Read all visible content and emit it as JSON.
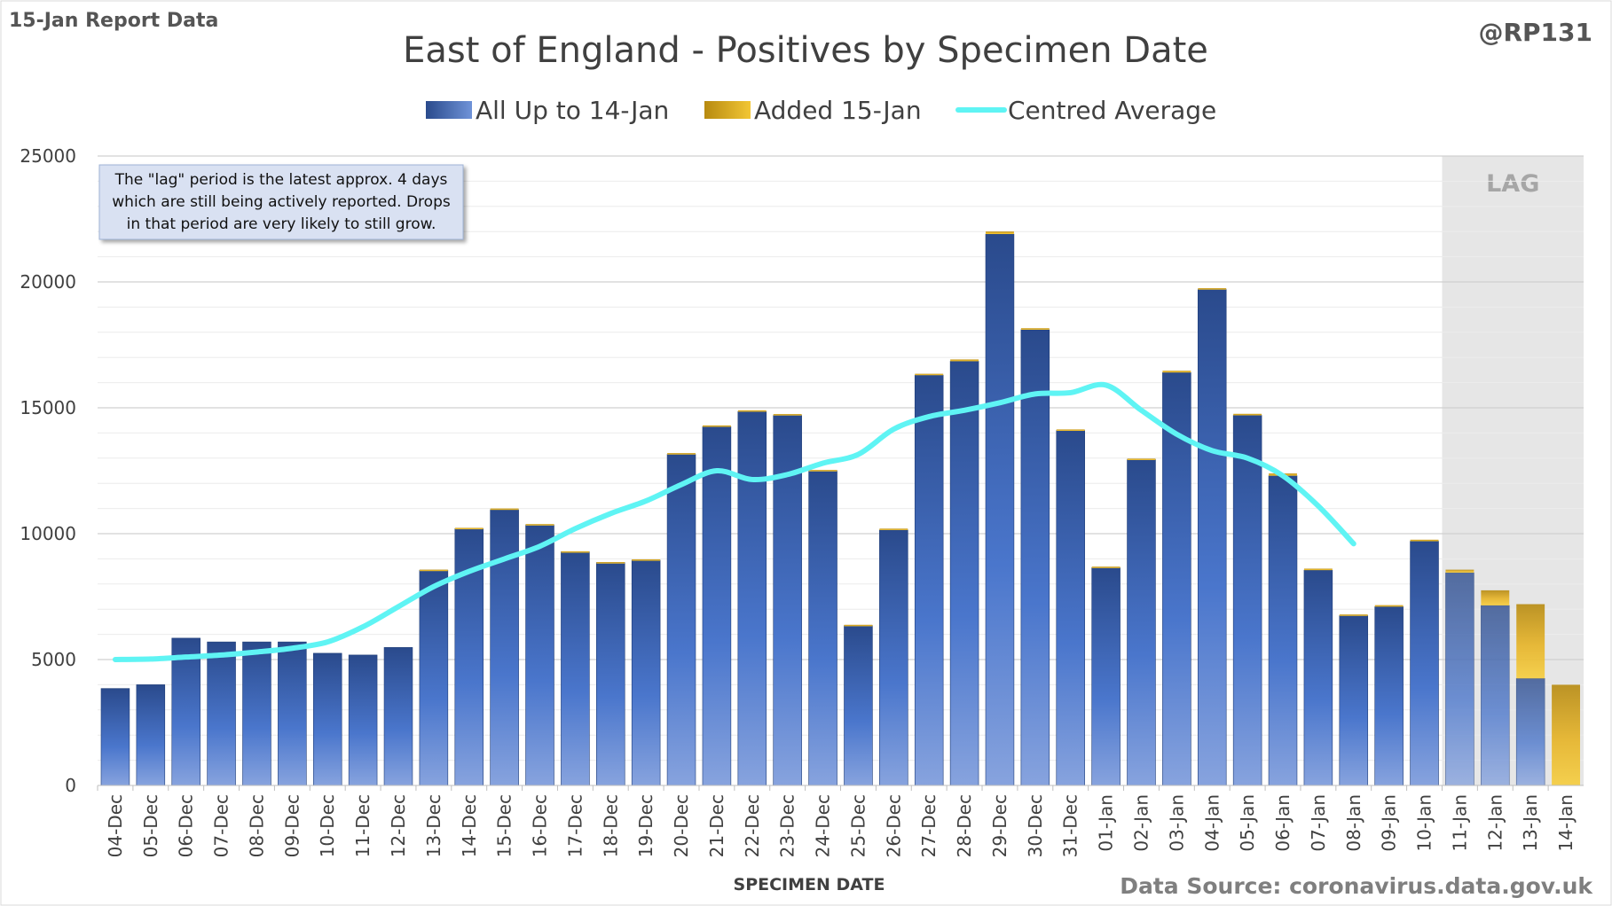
{
  "header": {
    "report_label": "15-Jan Report Data",
    "handle": "@RP131",
    "source": "Data Source: coronavirus.data.gov.uk"
  },
  "note": {
    "lines": [
      "The \"lag\" period is the latest approx. 4 days",
      "which are still being actively reported.  Drops",
      "in that period are very likely to still grow."
    ]
  },
  "lag_label": "LAG",
  "colors": {
    "base_series": "#3a62b8",
    "added_series": "#e8b21f",
    "average_line": "#5ff4f4",
    "lag_shade": "#e6e6e6"
  },
  "chart_data": {
    "type": "bar",
    "stacked": true,
    "title": "East of England - Positives by Specimen Date",
    "xlabel": "SPECIMEN DATE",
    "ylabel": "",
    "ylim": [
      0,
      25000
    ],
    "yticks": [
      0,
      5000,
      10000,
      15000,
      20000,
      25000
    ],
    "grid": true,
    "legend_position": "top",
    "categories": [
      "04-Dec",
      "05-Dec",
      "06-Dec",
      "07-Dec",
      "08-Dec",
      "09-Dec",
      "10-Dec",
      "11-Dec",
      "12-Dec",
      "13-Dec",
      "14-Dec",
      "15-Dec",
      "16-Dec",
      "17-Dec",
      "18-Dec",
      "19-Dec",
      "20-Dec",
      "21-Dec",
      "22-Dec",
      "23-Dec",
      "24-Dec",
      "25-Dec",
      "26-Dec",
      "27-Dec",
      "28-Dec",
      "29-Dec",
      "30-Dec",
      "31-Dec",
      "01-Jan",
      "02-Jan",
      "03-Jan",
      "04-Jan",
      "05-Jan",
      "06-Jan",
      "07-Jan",
      "08-Jan",
      "09-Jan",
      "10-Jan",
      "11-Jan",
      "12-Jan",
      "13-Jan",
      "14-Jan"
    ],
    "series": [
      {
        "name": "All Up to 14-Jan",
        "values": [
          3850,
          4000,
          5850,
          5700,
          5700,
          5700,
          5250,
          5180,
          5480,
          8550,
          10200,
          10950,
          10350,
          9280,
          8850,
          8950,
          13150,
          14250,
          14850,
          14700,
          12500,
          6350,
          10150,
          16300,
          16850,
          21900,
          18100,
          14100,
          8650,
          12950,
          16400,
          19700,
          14700,
          12300,
          8550,
          6750,
          7100,
          9700,
          8450,
          7150,
          4250,
          0
        ]
      },
      {
        "name": "Added 15-Jan",
        "values": [
          0,
          0,
          0,
          0,
          0,
          0,
          0,
          0,
          0,
          20,
          30,
          50,
          30,
          20,
          20,
          30,
          50,
          50,
          50,
          50,
          30,
          30,
          50,
          50,
          70,
          100,
          60,
          40,
          40,
          30,
          70,
          50,
          60,
          90,
          60,
          40,
          60,
          60,
          120,
          600,
          2950,
          4000
        ]
      },
      {
        "name": "Centred Average",
        "type": "line",
        "values": [
          5000,
          5020,
          5100,
          5180,
          5300,
          5450,
          5700,
          6300,
          7100,
          7900,
          8500,
          9000,
          9500,
          10200,
          10800,
          11300,
          11950,
          12500,
          12150,
          12350,
          12800,
          13150,
          14150,
          14650,
          14900,
          15200,
          15550,
          15600,
          15900,
          14900,
          13950,
          13300,
          13000,
          12300,
          11100,
          9600,
          null,
          null,
          null,
          null,
          null,
          null
        ]
      }
    ],
    "lag_period": [
      "11-Jan",
      "14-Jan"
    ]
  }
}
